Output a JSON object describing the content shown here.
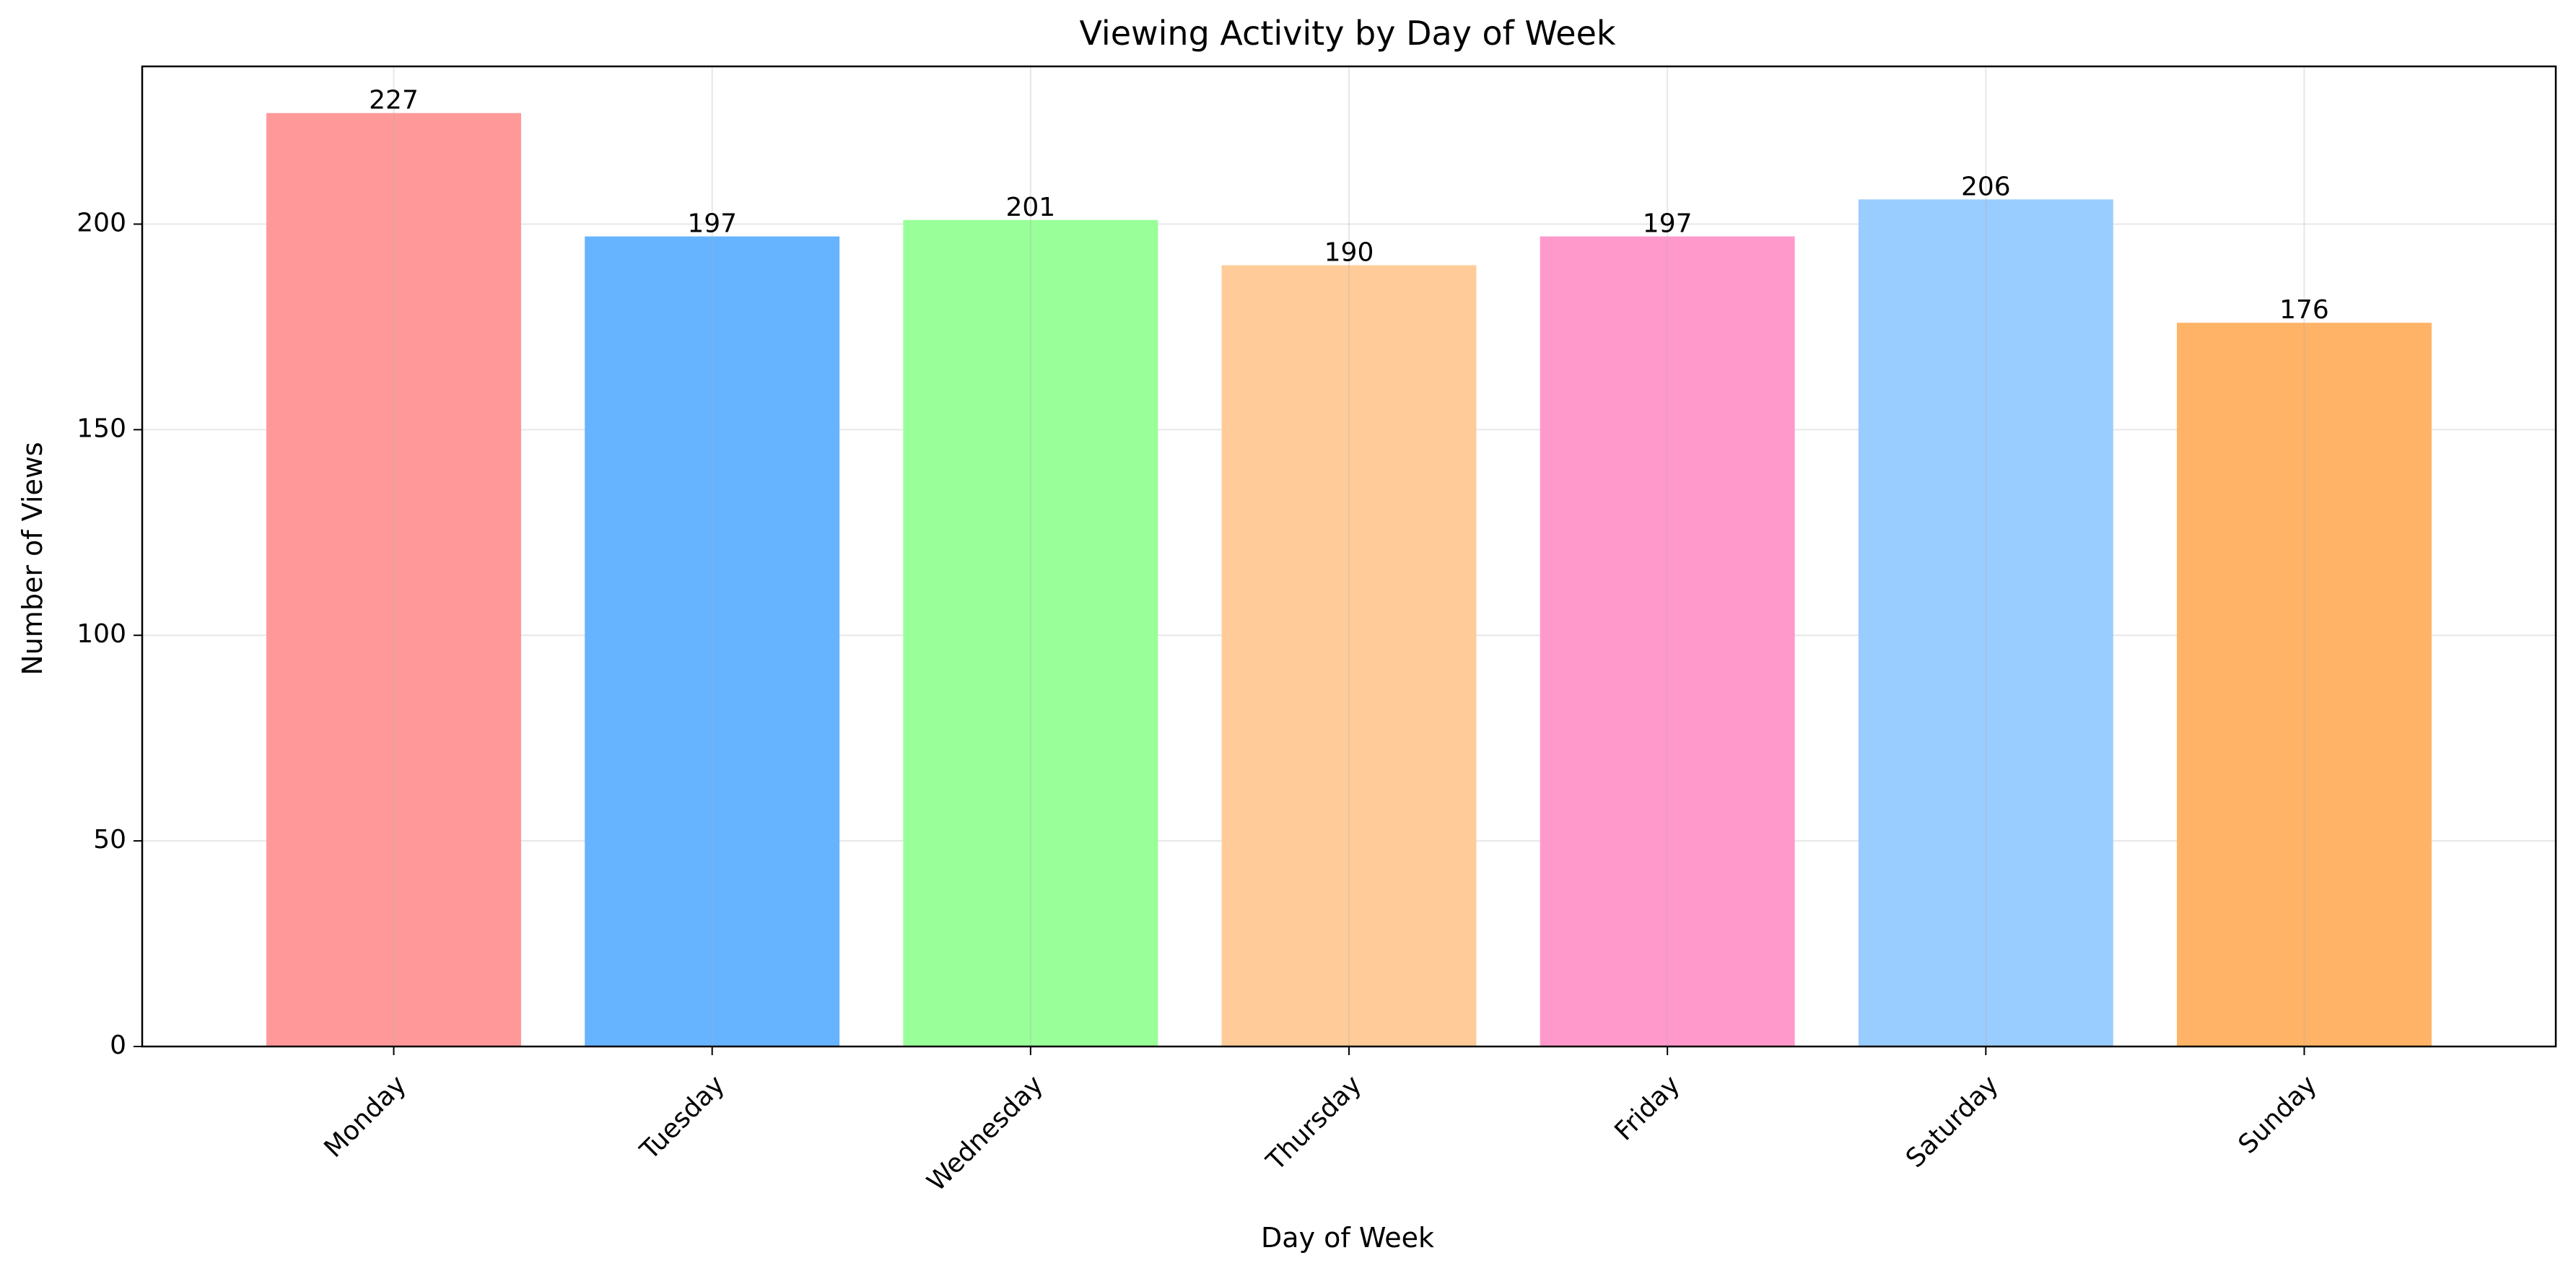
{
  "chart_data": {
    "type": "bar",
    "title": "Viewing Activity by Day of Week",
    "xlabel": "Day of Week",
    "ylabel": "Number of Views",
    "categories": [
      "Monday",
      "Tuesday",
      "Wednesday",
      "Thursday",
      "Friday",
      "Saturday",
      "Sunday"
    ],
    "values": [
      227,
      197,
      201,
      190,
      197,
      206,
      176
    ],
    "colors": [
      "#ff9999",
      "#66b3ff",
      "#99ff99",
      "#ffcc99",
      "#ff99cc",
      "#99ccff",
      "#ffb366"
    ],
    "ylim": [
      0,
      238.35
    ],
    "yticks": [
      0,
      50,
      100,
      150,
      200
    ],
    "grid": true,
    "legend": "none"
  }
}
